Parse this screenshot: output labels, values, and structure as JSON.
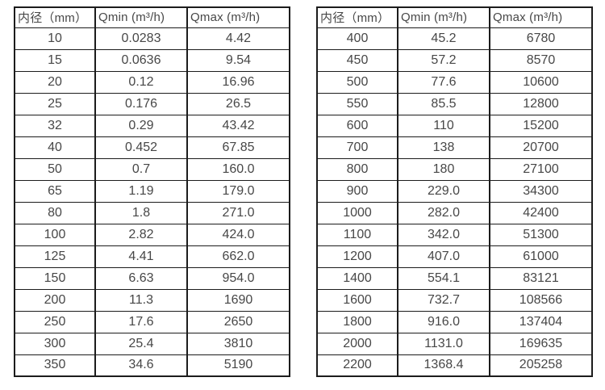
{
  "colors": {
    "border": "#1c1c1c",
    "text": "#474747",
    "background": "#ffffff"
  },
  "table_left": {
    "headers": [
      "内径（mm）",
      "Qmin (m³/h)",
      "Qmax (m³/h)"
    ],
    "rows": [
      [
        "10",
        "0.0283",
        "4.42"
      ],
      [
        "15",
        "0.0636",
        "9.54"
      ],
      [
        "20",
        "0.12",
        "16.96"
      ],
      [
        "25",
        "0.176",
        "26.5"
      ],
      [
        "32",
        "0.29",
        "43.42"
      ],
      [
        "40",
        "0.452",
        "67.85"
      ],
      [
        "50",
        "0.7",
        "160.0"
      ],
      [
        "65",
        "1.19",
        "179.0"
      ],
      [
        "80",
        "1.8",
        "271.0"
      ],
      [
        "100",
        "2.82",
        "424.0"
      ],
      [
        "125",
        "4.41",
        "662.0"
      ],
      [
        "150",
        "6.63",
        "954.0"
      ],
      [
        "200",
        "11.3",
        "1690"
      ],
      [
        "250",
        "17.6",
        "2650"
      ],
      [
        "300",
        "25.4",
        "3810"
      ],
      [
        "350",
        "34.6",
        "5190"
      ]
    ]
  },
  "table_right": {
    "headers": [
      "内径（mm）",
      "Qmin (m³/h)",
      "Qmax (m³/h)"
    ],
    "rows": [
      [
        "400",
        "45.2",
        "6780"
      ],
      [
        "450",
        "57.2",
        "8570"
      ],
      [
        "500",
        "77.6",
        "10600"
      ],
      [
        "550",
        "85.5",
        "12800"
      ],
      [
        "600",
        "110",
        "15200"
      ],
      [
        "700",
        "138",
        "20700"
      ],
      [
        "800",
        "180",
        "27100"
      ],
      [
        "900",
        "229.0",
        "34300"
      ],
      [
        "1000",
        "282.0",
        "42400"
      ],
      [
        "1100",
        "342.0",
        "51300"
      ],
      [
        "1200",
        "407.0",
        "61000"
      ],
      [
        "1400",
        "554.1",
        "83121"
      ],
      [
        "1600",
        "732.7",
        "108566"
      ],
      [
        "1800",
        "916.0",
        "137404"
      ],
      [
        "2000",
        "1131.0",
        "169635"
      ],
      [
        "2200",
        "1368.4",
        "205258"
      ]
    ]
  }
}
